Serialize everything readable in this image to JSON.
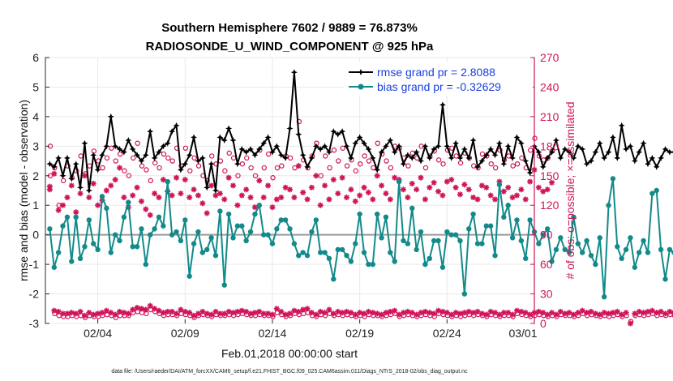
{
  "chart_data": {
    "type": "line",
    "title_line1": "Southern Hemisphere 7602 / 9889 = 76.873%",
    "title_line2": "RADIOSONDE_U_WIND_COMPONENT @ 925 hPa",
    "xlabel": "Feb.01,2018 00:00:00 start",
    "ylabel": "rmse and bias (model - observation)",
    "ylabel_right": "# of obs: o=possible; ×=assimilated",
    "footer": "data file: /Users/raeder/DAI/ATM_forcXX/CAM6_setup/f.e21.FHIST_BGC.f09_025.CAM6assim.011/Diags_NTrS_2018-02/obs_diag_output.nc",
    "xlim": [
      0,
      28
    ],
    "ylim": [
      -3,
      6
    ],
    "ylim_right": [
      0,
      270
    ],
    "x_ticks": [
      {
        "x": 3,
        "label": "02/04"
      },
      {
        "x": 8,
        "label": "02/09"
      },
      {
        "x": 13,
        "label": "02/14"
      },
      {
        "x": 18,
        "label": "02/19"
      },
      {
        "x": 23,
        "label": "02/24"
      },
      {
        "x": 28,
        "label": "03/01"
      }
    ],
    "y_ticks": [
      -3,
      -2,
      -1,
      0,
      1,
      2,
      3,
      4,
      5,
      6
    ],
    "y_ticks_right": [
      0,
      30,
      60,
      90,
      120,
      150,
      180,
      210,
      240,
      270
    ],
    "colors": {
      "rmse": "#000000",
      "bias": "#138a8a",
      "obs": "#d0145a",
      "zero": "#9a9a9a"
    },
    "legend": {
      "rmse": "rmse grand pr = 2.8088",
      "bias": "bias grand pr = -0.32629"
    },
    "x_start": 0.25,
    "x_step": 0.25,
    "series": [
      {
        "name": "rmse",
        "values": [
          2.4,
          2.3,
          2.6,
          2.0,
          2.6,
          1.9,
          2.4,
          1.6,
          3.1,
          1.5,
          2.7,
          2.2,
          2.7,
          3.0,
          4.0,
          3.0,
          2.9,
          2.8,
          3.2,
          2.9,
          2.7,
          2.5,
          2.7,
          3.5,
          2.6,
          2.8,
          3.0,
          3.1,
          3.5,
          3.7,
          2.2,
          2.4,
          2.7,
          3.3,
          2.5,
          2.6,
          1.6,
          2.4,
          1.5,
          3.3,
          3.2,
          3.6,
          3.2,
          2.4,
          2.9,
          2.8,
          2.9,
          2.7,
          2.9,
          3.1,
          3.3,
          2.8,
          3.0,
          2.7,
          2.6,
          3.6,
          5.5,
          3.4,
          2.7,
          2.3,
          2.6,
          3.0,
          2.9,
          3.0,
          2.8,
          3.5,
          3.4,
          3.5,
          3.0,
          2.6,
          3.1,
          3.3,
          3.1,
          2.9,
          2.6,
          2.2,
          2.8,
          3.0,
          3.2,
          2.8,
          3.0,
          2.4,
          2.7,
          2.6,
          2.8,
          2.5,
          3.0,
          2.6,
          2.9,
          3.0,
          4.4,
          3.0,
          2.6,
          3.1,
          2.6,
          2.9,
          2.6,
          3.2,
          2.3,
          2.5,
          2.7,
          2.9,
          2.7,
          3.1,
          2.4,
          3.0,
          2.6,
          3.3,
          3.1,
          2.5,
          2.1,
          3.0,
          2.8,
          2.3,
          2.6,
          2.8,
          3.2,
          2.6,
          2.9,
          2.8,
          2.6,
          3.0,
          2.9,
          2.4,
          2.5,
          2.8,
          3.1,
          2.6,
          2.8,
          3.3,
          2.6,
          3.7,
          2.9,
          3.0,
          2.5,
          2.8,
          3.1,
          2.4,
          2.6,
          2.3,
          2.6,
          2.9,
          2.8,
          2.8,
          2.7,
          2.3
        ]
      },
      {
        "name": "bias",
        "values": [
          0.2,
          -1.1,
          -0.6,
          0.3,
          0.6,
          -0.9,
          0.6,
          -0.8,
          -0.4,
          0.5,
          -0.3,
          -0.5,
          1.3,
          0.9,
          -0.6,
          0.0,
          -0.2,
          0.6,
          1.1,
          -0.4,
          -0.4,
          0.2,
          -1.0,
          0.0,
          0.2,
          0.6,
          0.3,
          1.8,
          0.0,
          0.1,
          -0.2,
          0.5,
          -1.4,
          -0.3,
          0.1,
          -0.6,
          -0.5,
          -0.1,
          -0.7,
          0.8,
          -1.7,
          0.7,
          -0.1,
          0.3,
          0.3,
          -0.2,
          0.1,
          0.7,
          1.0,
          0.0,
          0.0,
          -0.3,
          0.2,
          0.5,
          0.5,
          0.2,
          -0.3,
          -0.7,
          -0.6,
          -0.7,
          0.1,
          0.5,
          -0.6,
          -0.6,
          -0.8,
          -1.5,
          -0.5,
          -0.5,
          -0.7,
          -0.9,
          -0.3,
          0.7,
          -0.6,
          -1.0,
          -1.0,
          0.7,
          -0.1,
          0.6,
          -0.6,
          -0.9,
          1.8,
          -0.2,
          -0.3,
          0.9,
          -0.5,
          0.1,
          -1.0,
          -0.8,
          -0.2,
          -0.2,
          -1.1,
          0.1,
          0.0,
          0.0,
          -0.2,
          -2.0,
          0.2,
          0.7,
          -0.3,
          -0.3,
          0.3,
          0.3,
          -0.7,
          1.7,
          0.6,
          1.0,
          -0.1,
          0.5,
          -0.2,
          -0.8,
          0.5,
          0.1,
          -0.3,
          0.0,
          0.2,
          -0.9,
          -0.5,
          -0.1,
          -0.5,
          -0.6,
          0.6,
          -0.3,
          -0.6,
          -0.2,
          -0.7,
          -1.0,
          -0.1,
          -2.1,
          1.0,
          1.9,
          -0.4,
          -0.8,
          -0.5,
          -0.1,
          -1.1,
          -0.6,
          -0.2,
          -0.6,
          1.4,
          1.5,
          -0.5,
          -1.5,
          -0.5,
          -0.6
        ]
      },
      {
        "name": "possible_obs",
        "values": [
          180,
          10,
          8,
          7,
          7,
          8,
          7,
          8,
          6,
          8,
          7,
          7,
          8,
          9,
          8,
          6,
          8,
          8,
          8,
          11,
          12,
          11,
          10,
          14,
          12,
          10,
          8,
          9,
          9,
          8,
          10,
          9,
          8,
          6,
          8,
          9,
          8,
          7,
          9,
          8,
          8,
          9,
          8,
          9,
          10,
          9,
          8,
          8,
          9,
          8,
          8,
          7,
          11,
          9,
          7,
          8,
          10,
          9,
          10,
          11,
          8,
          7,
          9,
          8,
          10,
          8,
          9,
          8,
          9,
          8,
          7,
          8,
          7,
          9,
          8,
          8,
          7,
          8,
          9,
          10,
          7,
          8,
          9,
          8,
          7,
          8,
          9,
          8,
          7,
          10,
          9,
          8,
          7,
          8,
          7,
          8,
          9,
          8,
          9,
          8,
          7,
          9,
          8,
          7,
          8,
          8,
          7,
          10,
          9,
          8,
          7,
          8,
          9,
          8,
          7,
          8,
          7,
          9,
          8,
          8,
          7,
          8,
          10,
          8,
          9,
          8,
          7,
          8,
          7,
          8,
          9,
          7,
          8,
          2,
          8,
          9,
          8,
          9,
          10,
          8,
          9,
          8,
          9,
          8,
          7,
          8
        ]
      },
      {
        "name": "assimilated_obs",
        "values": [
          139,
          13,
          12,
          10,
          10,
          11,
          10,
          12,
          8,
          11,
          9,
          10,
          11,
          13,
          11,
          9,
          12,
          11,
          10,
          14,
          16,
          15,
          14,
          18,
          15,
          13,
          11,
          12,
          12,
          10,
          14,
          12,
          11,
          8,
          10,
          12,
          10,
          9,
          12,
          10,
          10,
          12,
          11,
          12,
          13,
          12,
          10,
          11,
          12,
          10,
          10,
          9,
          15,
          12,
          9,
          10,
          13,
          12,
          14,
          15,
          11,
          9,
          12,
          11,
          14,
          10,
          12,
          11,
          12,
          11,
          9,
          11,
          10,
          12,
          11,
          10,
          9,
          11,
          12,
          13,
          9,
          11,
          12,
          11,
          9,
          11,
          12,
          11,
          10,
          13,
          12,
          11,
          9,
          11,
          10,
          11,
          12,
          11,
          12,
          10,
          9,
          12,
          11,
          9,
          11,
          11,
          9,
          13,
          12,
          11,
          9,
          11,
          12,
          11,
          9,
          11,
          9,
          12,
          10,
          11,
          9,
          11,
          13,
          11,
          12,
          10,
          9,
          11,
          10,
          11,
          12,
          9,
          11,
          0,
          10,
          12,
          11,
          12,
          13,
          11,
          12,
          10,
          12,
          11,
          9,
          10
        ]
      },
      {
        "name": "possible_obs_high",
        "values": [
          150,
          158,
          120,
          145,
          160,
          148,
          155,
          170,
          152,
          160,
          175,
          165,
          158,
          168,
          178,
          165,
          172,
          155,
          150,
          168,
          183,
          160,
          156,
          145,
          163,
          158,
          172,
          168,
          165,
          178,
          160,
          178,
          155,
          168,
          160,
          150,
          145,
          170,
          162,
          165,
          155,
          173,
          168,
          150,
          162,
          168,
          158,
          150,
          176,
          158,
          172,
          148,
          158,
          160,
          170,
          168,
          158,
          205,
          166,
          158,
          170,
          183,
          150,
          170,
          158,
          176,
          165,
          178,
          160,
          166,
          155,
          162,
          170,
          165,
          158,
          183,
          172,
          165,
          158,
          180,
          178,
          168,
          160,
          173,
          168,
          180,
          158,
          170,
          175,
          166,
          162,
          176,
          178,
          170,
          163,
          173,
          168,
          160,
          158,
          172,
          170,
          162,
          158,
          176,
          166,
          170,
          160,
          162,
          168,
          158,
          176,
          188,
          170,
          166,
          168,
          175
        ]
      },
      {
        "name": "assimilated_obs_high",
        "values": [
          136,
          152,
          115,
          120,
          128,
          140,
          113,
          132,
          150,
          128,
          142,
          120,
          125,
          135,
          140,
          146,
          158,
          128,
          118,
          130,
          138,
          124,
          116,
          110,
          132,
          128,
          146,
          134,
          130,
          148,
          132,
          146,
          128,
          136,
          130,
          122,
          112,
          140,
          130,
          132,
          126,
          148,
          140,
          120,
          130,
          136,
          128,
          118,
          145,
          128,
          140,
          118,
          126,
          128,
          138,
          136,
          128,
          160,
          133,
          126,
          138,
          150,
          120,
          140,
          126,
          146,
          132,
          148,
          128,
          136,
          124,
          130,
          138,
          133,
          126,
          150,
          140,
          132,
          126,
          148,
          146,
          136,
          128,
          142,
          136,
          148,
          126,
          138,
          143,
          134,
          130,
          144,
          146,
          138,
          131,
          141,
          136,
          128,
          126,
          140,
          138,
          130,
          126,
          144,
          134,
          138,
          128,
          130,
          136,
          126,
          144,
          156,
          138,
          134,
          136,
          143
        ]
      }
    ]
  }
}
